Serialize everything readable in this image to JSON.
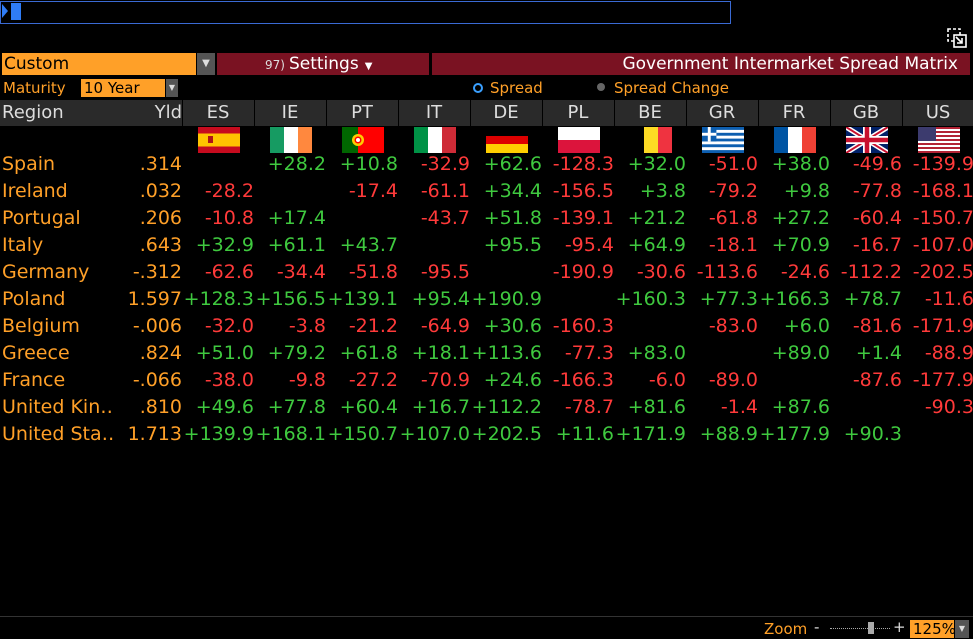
{
  "toolbar": {
    "custom_label": "Custom",
    "settings_num": "97)",
    "settings_label": "Settings",
    "title": "Government Intermarket Spread Matrix"
  },
  "maturity": {
    "label": "Maturity",
    "value": "10 Year"
  },
  "mode": {
    "option1": "Spread",
    "option2": "Spread Change",
    "selected": "Spread"
  },
  "header": {
    "region": "Region",
    "yld": "Yld",
    "columns": [
      "ES",
      "IE",
      "PT",
      "IT",
      "DE",
      "PL",
      "BE",
      "GR",
      "FR",
      "GB",
      "US"
    ]
  },
  "rows": [
    {
      "region": "Spain",
      "yld": ".314",
      "values": [
        "",
        "+28.2",
        "+10.8",
        "-32.9",
        "+62.6",
        "-128.3",
        "+32.0",
        "-51.0",
        "+38.0",
        "-49.6",
        "-139.9"
      ]
    },
    {
      "region": "Ireland",
      "yld": ".032",
      "values": [
        "-28.2",
        "",
        "-17.4",
        "-61.1",
        "+34.4",
        "-156.5",
        "+3.8",
        "-79.2",
        "+9.8",
        "-77.8",
        "-168.1"
      ]
    },
    {
      "region": "Portugal",
      "yld": ".206",
      "values": [
        "-10.8",
        "+17.4",
        "",
        "-43.7",
        "+51.8",
        "-139.1",
        "+21.2",
        "-61.8",
        "+27.2",
        "-60.4",
        "-150.7"
      ]
    },
    {
      "region": "Italy",
      "yld": ".643",
      "values": [
        "+32.9",
        "+61.1",
        "+43.7",
        "",
        "+95.5",
        "-95.4",
        "+64.9",
        "-18.1",
        "+70.9",
        "-16.7",
        "-107.0"
      ]
    },
    {
      "region": "Germany",
      "yld": "-.312",
      "values": [
        "-62.6",
        "-34.4",
        "-51.8",
        "-95.5",
        "",
        "-190.9",
        "-30.6",
        "-113.6",
        "-24.6",
        "-112.2",
        "-202.5"
      ]
    },
    {
      "region": "Poland",
      "yld": "1.597",
      "values": [
        "+128.3",
        "+156.5",
        "+139.1",
        "+95.4",
        "+190.9",
        "",
        "+160.3",
        "+77.3",
        "+166.3",
        "+78.7",
        "-11.6"
      ]
    },
    {
      "region": "Belgium",
      "yld": "-.006",
      "values": [
        "-32.0",
        "-3.8",
        "-21.2",
        "-64.9",
        "+30.6",
        "-160.3",
        "",
        "-83.0",
        "+6.0",
        "-81.6",
        "-171.9"
      ]
    },
    {
      "region": "Greece",
      "yld": ".824",
      "values": [
        "+51.0",
        "+79.2",
        "+61.8",
        "+18.1",
        "+113.6",
        "-77.3",
        "+83.0",
        "",
        "+89.0",
        "+1.4",
        "-88.9"
      ]
    },
    {
      "region": "France",
      "yld": "-.066",
      "values": [
        "-38.0",
        "-9.8",
        "-27.2",
        "-70.9",
        "+24.6",
        "-166.3",
        "-6.0",
        "-89.0",
        "",
        "-87.6",
        "-177.9"
      ]
    },
    {
      "region": "United Kin…",
      "yld": ".810",
      "values": [
        "+49.6",
        "+77.8",
        "+60.4",
        "+16.7",
        "+112.2",
        "-78.7",
        "+81.6",
        "-1.4",
        "+87.6",
        "",
        "-90.3"
      ]
    },
    {
      "region": "United Sta…",
      "yld": "1.713",
      "values": [
        "+139.9",
        "+168.1",
        "+150.7",
        "+107.0",
        "+202.5",
        "+11.6",
        "+171.9",
        "+88.9",
        "+177.9",
        "+90.3",
        ""
      ]
    }
  ],
  "zoom": {
    "label": "Zoom",
    "minus": "-",
    "plus": "+",
    "value": "125%"
  },
  "colors": {
    "accent": "#ffa028",
    "positive": "#3fc93f",
    "negative": "#ff3a3a",
    "banner": "#7a1222"
  }
}
